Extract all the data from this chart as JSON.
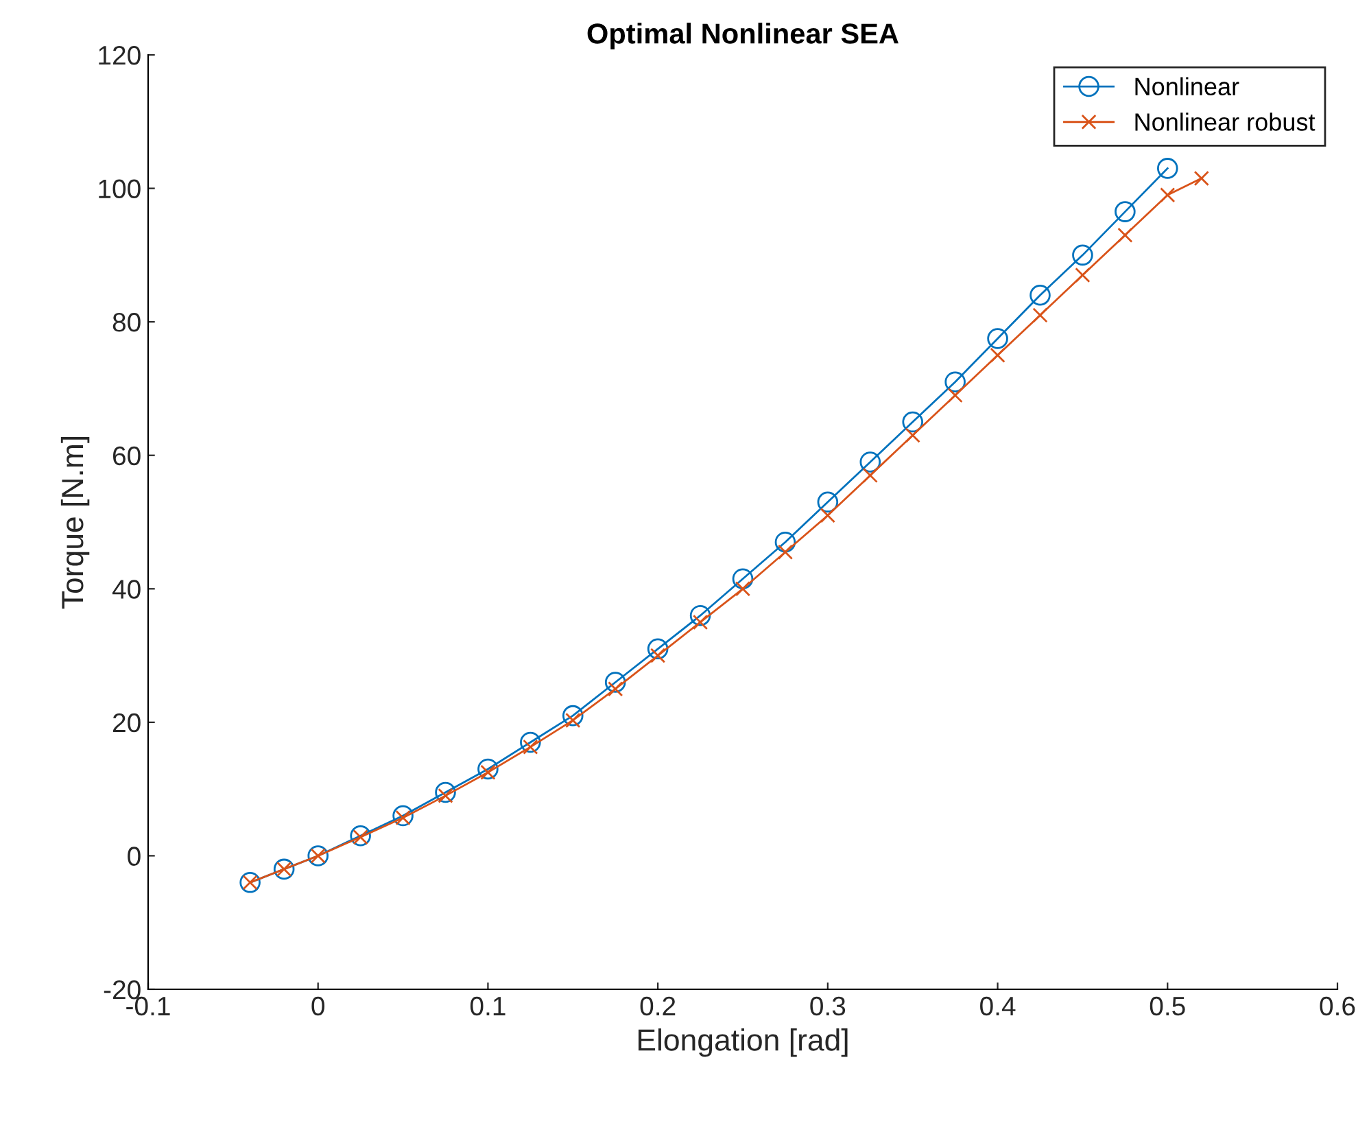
{
  "chart_data": {
    "type": "line",
    "title": "Optimal Nonlinear SEA",
    "xlabel": "Elongation [rad]",
    "ylabel": "Torque [N.m]",
    "xlim": [
      -0.1,
      0.6
    ],
    "xticks": [
      -0.1,
      0,
      0.1,
      0.2,
      0.3,
      0.4,
      0.5,
      0.6
    ],
    "ylim": [
      -20,
      120
    ],
    "yticks": [
      -20,
      0,
      20,
      40,
      60,
      80,
      100,
      120
    ],
    "grid": false,
    "legend": "top right",
    "series": [
      {
        "name": "Nonlinear",
        "color": "#0072bd",
        "marker": "circle",
        "x": [
          -0.04,
          -0.02,
          0,
          0.025,
          0.05,
          0.075,
          0.1,
          0.125,
          0.15,
          0.175,
          0.2,
          0.225,
          0.25,
          0.275,
          0.3,
          0.325,
          0.35,
          0.375,
          0.4,
          0.425,
          0.45,
          0.475,
          0.5
        ],
        "values": [
          -4,
          -2,
          0,
          3,
          6,
          9.5,
          13,
          17,
          21,
          26,
          31,
          36,
          41.5,
          47,
          53,
          59,
          65,
          71,
          77.5,
          84,
          90,
          96.5,
          103
        ]
      },
      {
        "name": "Nonlinear robust",
        "color": "#d95319",
        "marker": "cross",
        "x": [
          -0.04,
          -0.02,
          0,
          0.025,
          0.05,
          0.075,
          0.1,
          0.125,
          0.15,
          0.175,
          0.2,
          0.225,
          0.25,
          0.275,
          0.3,
          0.325,
          0.35,
          0.375,
          0.4,
          0.425,
          0.45,
          0.475,
          0.5,
          0.52
        ],
        "values": [
          -4,
          -2,
          0,
          2.8,
          5.7,
          9,
          12.5,
          16.3,
          20.3,
          25,
          30,
          35,
          40,
          45.5,
          51,
          57,
          63,
          69,
          75,
          81,
          87,
          93,
          99,
          101.5
        ]
      }
    ]
  }
}
